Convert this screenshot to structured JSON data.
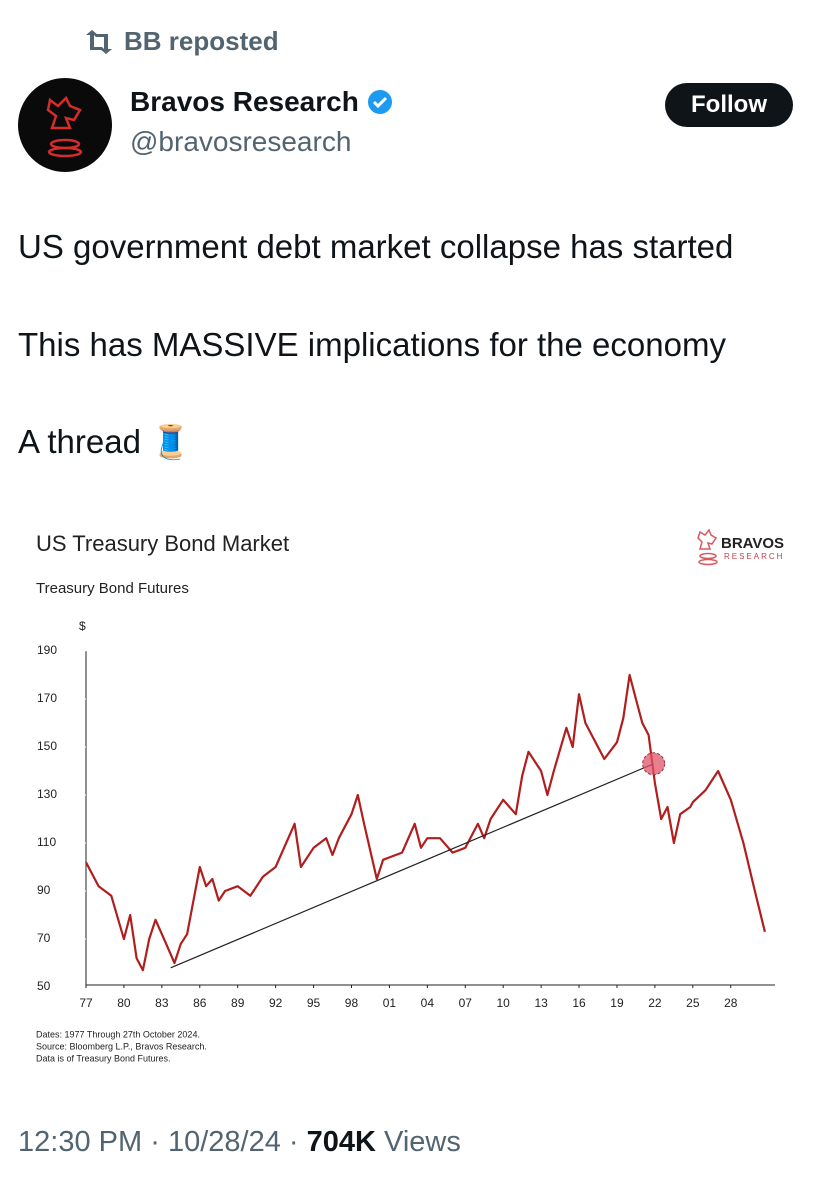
{
  "repost": {
    "label": "BB reposted"
  },
  "author": {
    "name": "Bravos Research",
    "handle": "@bravosresearch",
    "follow": "Follow"
  },
  "text": {
    "lines": [
      "US government debt market collapse has started",
      "This has MASSIVE implications for the economy",
      "A thread 🧵"
    ]
  },
  "chart_data": {
    "type": "line",
    "title": "US Treasury Bond Market",
    "subtitle": "Treasury Bond Futures",
    "y_unit": "$",
    "logo": {
      "name": "BRAVOS",
      "sub": "RESEARCH"
    },
    "notes": [
      "Dates: 1977 Through 27th October 2024.",
      "Source: Bloomberg L.P., Bravos Research.",
      "Data is of Treasury Bond Futures."
    ],
    "xlim": [
      1977,
      2031.5
    ],
    "ylim": [
      50,
      190
    ],
    "yticks": [
      50,
      70,
      90,
      110,
      130,
      150,
      170,
      190
    ],
    "xticks": [
      {
        "value": 1977,
        "label": "77"
      },
      {
        "value": 1980,
        "label": "80"
      },
      {
        "value": 1983,
        "label": "83"
      },
      {
        "value": 1986,
        "label": "86"
      },
      {
        "value": 1989,
        "label": "89"
      },
      {
        "value": 1992,
        "label": "92"
      },
      {
        "value": 1995,
        "label": "95"
      },
      {
        "value": 1998,
        "label": "98"
      },
      {
        "value": 2001,
        "label": "01"
      },
      {
        "value": 2004,
        "label": "04"
      },
      {
        "value": 2007,
        "label": "07"
      },
      {
        "value": 2010,
        "label": "10"
      },
      {
        "value": 2013,
        "label": "13"
      },
      {
        "value": 2016,
        "label": "16"
      },
      {
        "value": 2019,
        "label": "19"
      },
      {
        "value": 2022,
        "label": "22"
      },
      {
        "value": 2025,
        "label": "25"
      },
      {
        "value": 2028,
        "label": "28"
      }
    ],
    "series": [
      {
        "color": "#b01e1e",
        "x": [
          1977,
          1978,
          1979,
          1980,
          1980.5,
          1981,
          1981.5,
          1982,
          1982.5,
          1983,
          1984,
          1984.5,
          1985,
          1986,
          1986.5,
          1987,
          1987.5,
          1988,
          1989,
          1990,
          1991,
          1992,
          1993,
          1993.5,
          1994,
          1995,
          1996,
          1996.5,
          1997,
          1998,
          1998.5,
          1999,
          2000,
          2000.5,
          2001,
          2002,
          2003,
          2003.5,
          2004,
          2005,
          2006,
          2007,
          2008,
          2008.5,
          2009,
          2010,
          2011,
          2011.5,
          2012,
          2013,
          2013.5,
          2014,
          2015,
          2015.5,
          2016,
          2016.5,
          2017,
          2018,
          2019,
          2019.5,
          2020,
          2020.5,
          2021,
          2021.5,
          2022,
          2022.5,
          2023,
          2023.5,
          2024,
          2024.8,
          2025,
          2026,
          2027,
          2028,
          2029,
          2030,
          2030.7
        ],
        "values": [
          102,
          92,
          88,
          70,
          80,
          62,
          57,
          70,
          78,
          72,
          60,
          68,
          72,
          100,
          92,
          95,
          86,
          90,
          92,
          88,
          96,
          100,
          112,
          118,
          100,
          108,
          112,
          105,
          112,
          122,
          130,
          118,
          95,
          103,
          104,
          106,
          118,
          108,
          112,
          112,
          106,
          108,
          118,
          112,
          120,
          128,
          122,
          138,
          148,
          140,
          130,
          140,
          158,
          150,
          172,
          160,
          155,
          145,
          152,
          162,
          180,
          170,
          160,
          155,
          135,
          120,
          125,
          110,
          122,
          125,
          127,
          132,
          140,
          128,
          110,
          88,
          73
        ]
      },
      {
        "color": "#222222",
        "x": [
          1983.7,
          2021.9
        ],
        "values": [
          58,
          143
        ]
      }
    ],
    "highlight": {
      "x": 2021.9,
      "y": 143,
      "color": "#e0546a"
    }
  },
  "footer": {
    "time": "12:30 PM",
    "date": "10/28/24",
    "separator": "·",
    "views_count": "704K",
    "views_label": "Views"
  }
}
